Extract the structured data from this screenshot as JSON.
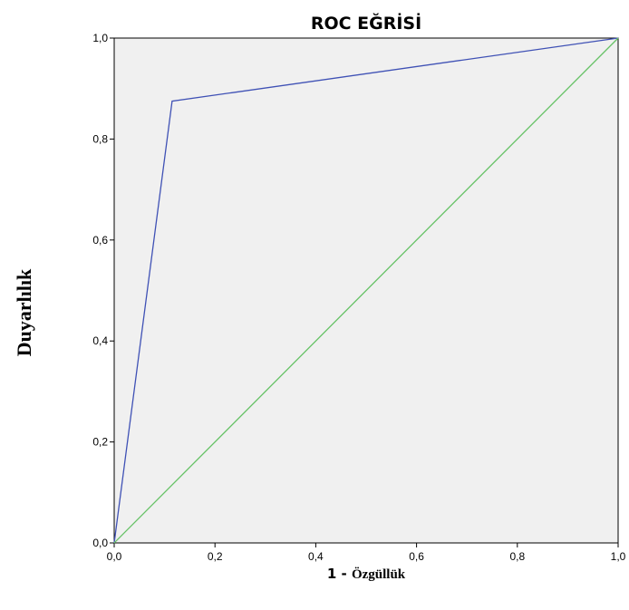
{
  "chart_data": {
    "type": "line",
    "title": "ROC EĞRİSİ",
    "xlabel_prefix": "1 - ",
    "xlabel": "Özgüllük",
    "ylabel": "Duyarlılık",
    "xlim": [
      0,
      1
    ],
    "ylim": [
      0,
      1
    ],
    "x_ticks": [
      0,
      0.2,
      0.4,
      0.6,
      0.8,
      1.0
    ],
    "y_ticks": [
      0,
      0.2,
      0.4,
      0.6,
      0.8,
      1.0
    ],
    "x_tick_labels": [
      "0,0",
      "0,2",
      "0,4",
      "0,6",
      "0,8",
      "1,0"
    ],
    "y_tick_labels": [
      "0,0",
      "0,2",
      "0,4",
      "0,6",
      "0,8",
      "1,0"
    ],
    "grid": false,
    "plot_background": "#f0f0f0",
    "series": [
      {
        "color": "#3f51b5",
        "x": [
          0,
          0.115,
          1.0
        ],
        "y": [
          0,
          0.875,
          1.0
        ]
      },
      {
        "color": "#66c266",
        "x": [
          0,
          1.0
        ],
        "y": [
          0,
          1.0
        ]
      }
    ]
  }
}
